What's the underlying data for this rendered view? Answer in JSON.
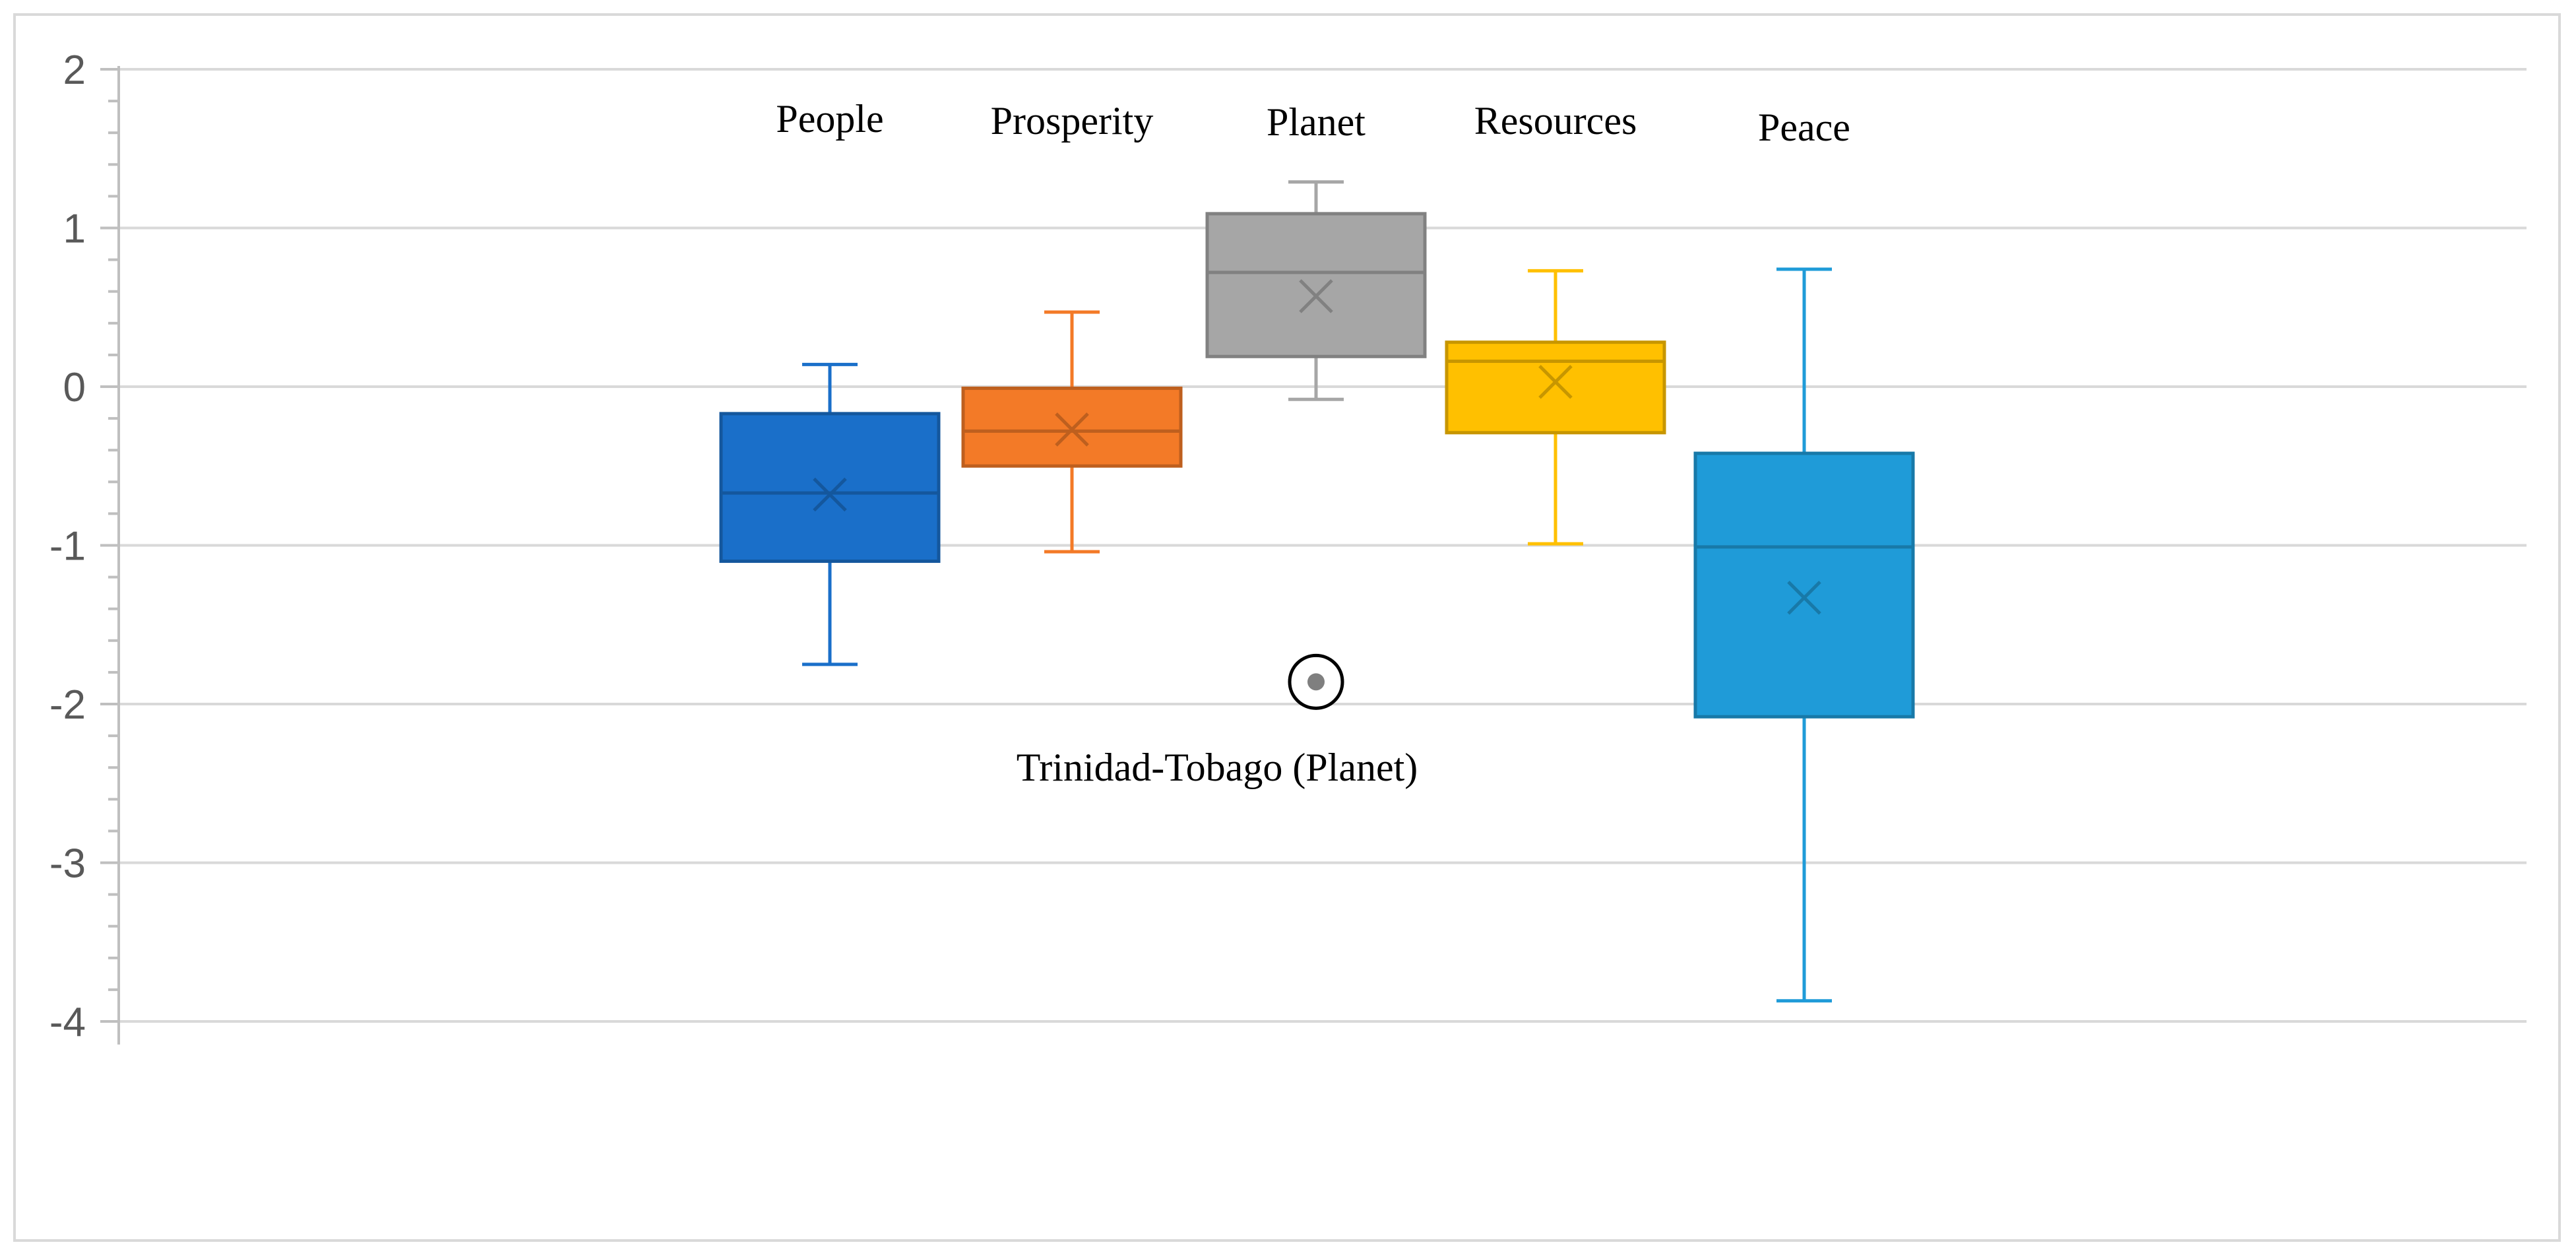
{
  "chart_data": {
    "type": "box",
    "ylim": [
      -4,
      2
    ],
    "yticks": [
      2,
      1,
      0,
      -1,
      -2,
      -3,
      -4
    ],
    "grid": true,
    "series": [
      {
        "name": "People",
        "color": "#1a6fc9",
        "min": -1.75,
        "q1": -1.1,
        "median": -0.67,
        "q3": -0.17,
        "max": 0.14,
        "mean": -0.68
      },
      {
        "name": "Prosperity",
        "color": "#f37a27",
        "min": -1.04,
        "q1": -0.5,
        "median": -0.28,
        "q3": -0.01,
        "max": 0.47,
        "mean": -0.27
      },
      {
        "name": "Planet",
        "color": "#a6a6a6",
        "min": -0.08,
        "q1": 0.19,
        "median": 0.72,
        "q3": 1.09,
        "max": 1.29,
        "mean": 0.57,
        "outliers": [
          -1.86
        ]
      },
      {
        "name": "Resources",
        "color": "#ffc000",
        "min": -0.99,
        "q1": -0.29,
        "median": 0.16,
        "q3": 0.28,
        "max": 0.73,
        "mean": 0.03
      },
      {
        "name": "Peace",
        "color": "#1f9bd8",
        "min": -3.87,
        "q1": -2.08,
        "median": -1.01,
        "q3": -0.42,
        "max": 0.74,
        "mean": -1.33
      }
    ],
    "annotations": [
      {
        "text": "Trinidad-Tobago (Planet)",
        "y": -2.4
      }
    ]
  }
}
